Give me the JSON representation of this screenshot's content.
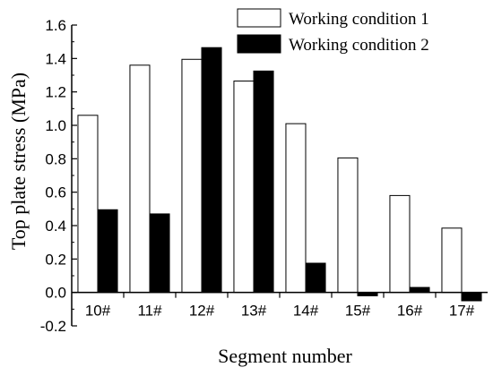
{
  "chart_data": {
    "type": "bar",
    "xlabel": "Segment number",
    "ylabel": "Top plate stress (MPa)",
    "categories": [
      "10#",
      "11#",
      "12#",
      "13#",
      "14#",
      "15#",
      "16#",
      "17#"
    ],
    "series": [
      {
        "name": "Working condition 1",
        "color": "#ffffff",
        "values": [
          1.06,
          1.36,
          1.395,
          1.265,
          1.01,
          0.805,
          0.58,
          0.385
        ]
      },
      {
        "name": "Working condition 2",
        "color": "#000000",
        "values": [
          0.495,
          0.47,
          1.465,
          1.325,
          0.175,
          -0.02,
          0.03,
          -0.05
        ]
      }
    ],
    "ylim": [
      -0.2,
      1.6
    ],
    "yticks": [
      "-0.2",
      "0.0",
      "0.2",
      "0.4",
      "0.6",
      "0.8",
      "1.0",
      "1.2",
      "1.4",
      "1.6"
    ],
    "legend_position": "top-right"
  }
}
